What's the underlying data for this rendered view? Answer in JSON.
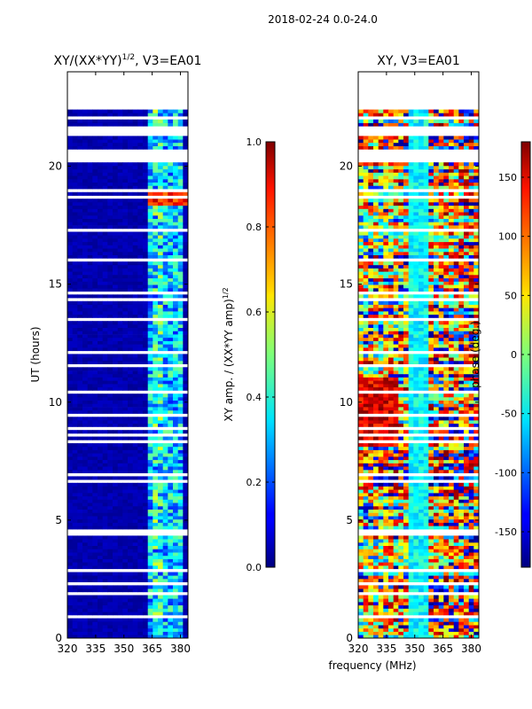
{
  "suptitle": "2018-02-24 0.0-24.0",
  "xlabel_shared": "frequency (MHz)",
  "chart_data": [
    {
      "type": "heatmap",
      "title_main": "XY/(XX*YY)",
      "title_sup": "1/2",
      "title_rest": ", V3=EA01",
      "ylabel": "UT (hours)",
      "xlim": [
        320,
        384
      ],
      "ylim": [
        0,
        24
      ],
      "xticks": [
        320,
        335,
        350,
        365,
        380
      ],
      "yticks": [
        0,
        5,
        10,
        15,
        20
      ],
      "data_rows_hours": [
        0,
        22.4
      ],
      "colorbar": {
        "label_main": "XY amp. / (XX*YY amp)",
        "label_sup": "1/2",
        "range": [
          0.0,
          1.0
        ],
        "ticks": [
          "0.0",
          "0.2",
          "0.4",
          "0.6",
          "0.8",
          "1.0"
        ],
        "colormap": "jet"
      }
    },
    {
      "type": "heatmap",
      "title": "XY, V3=EA01",
      "xlim": [
        320,
        384
      ],
      "ylim": [
        0,
        24
      ],
      "xticks": [
        320,
        335,
        350,
        365,
        380
      ],
      "yticks": [
        0,
        5,
        10,
        15,
        20
      ],
      "data_rows_hours": [
        0,
        22.4
      ],
      "colorbar": {
        "label": "phase (deg.)",
        "range": [
          -180,
          180
        ],
        "ticks": [
          "-150",
          "-100",
          "-50",
          "0",
          "50",
          "100",
          "150"
        ],
        "colormap": "jet"
      }
    }
  ]
}
